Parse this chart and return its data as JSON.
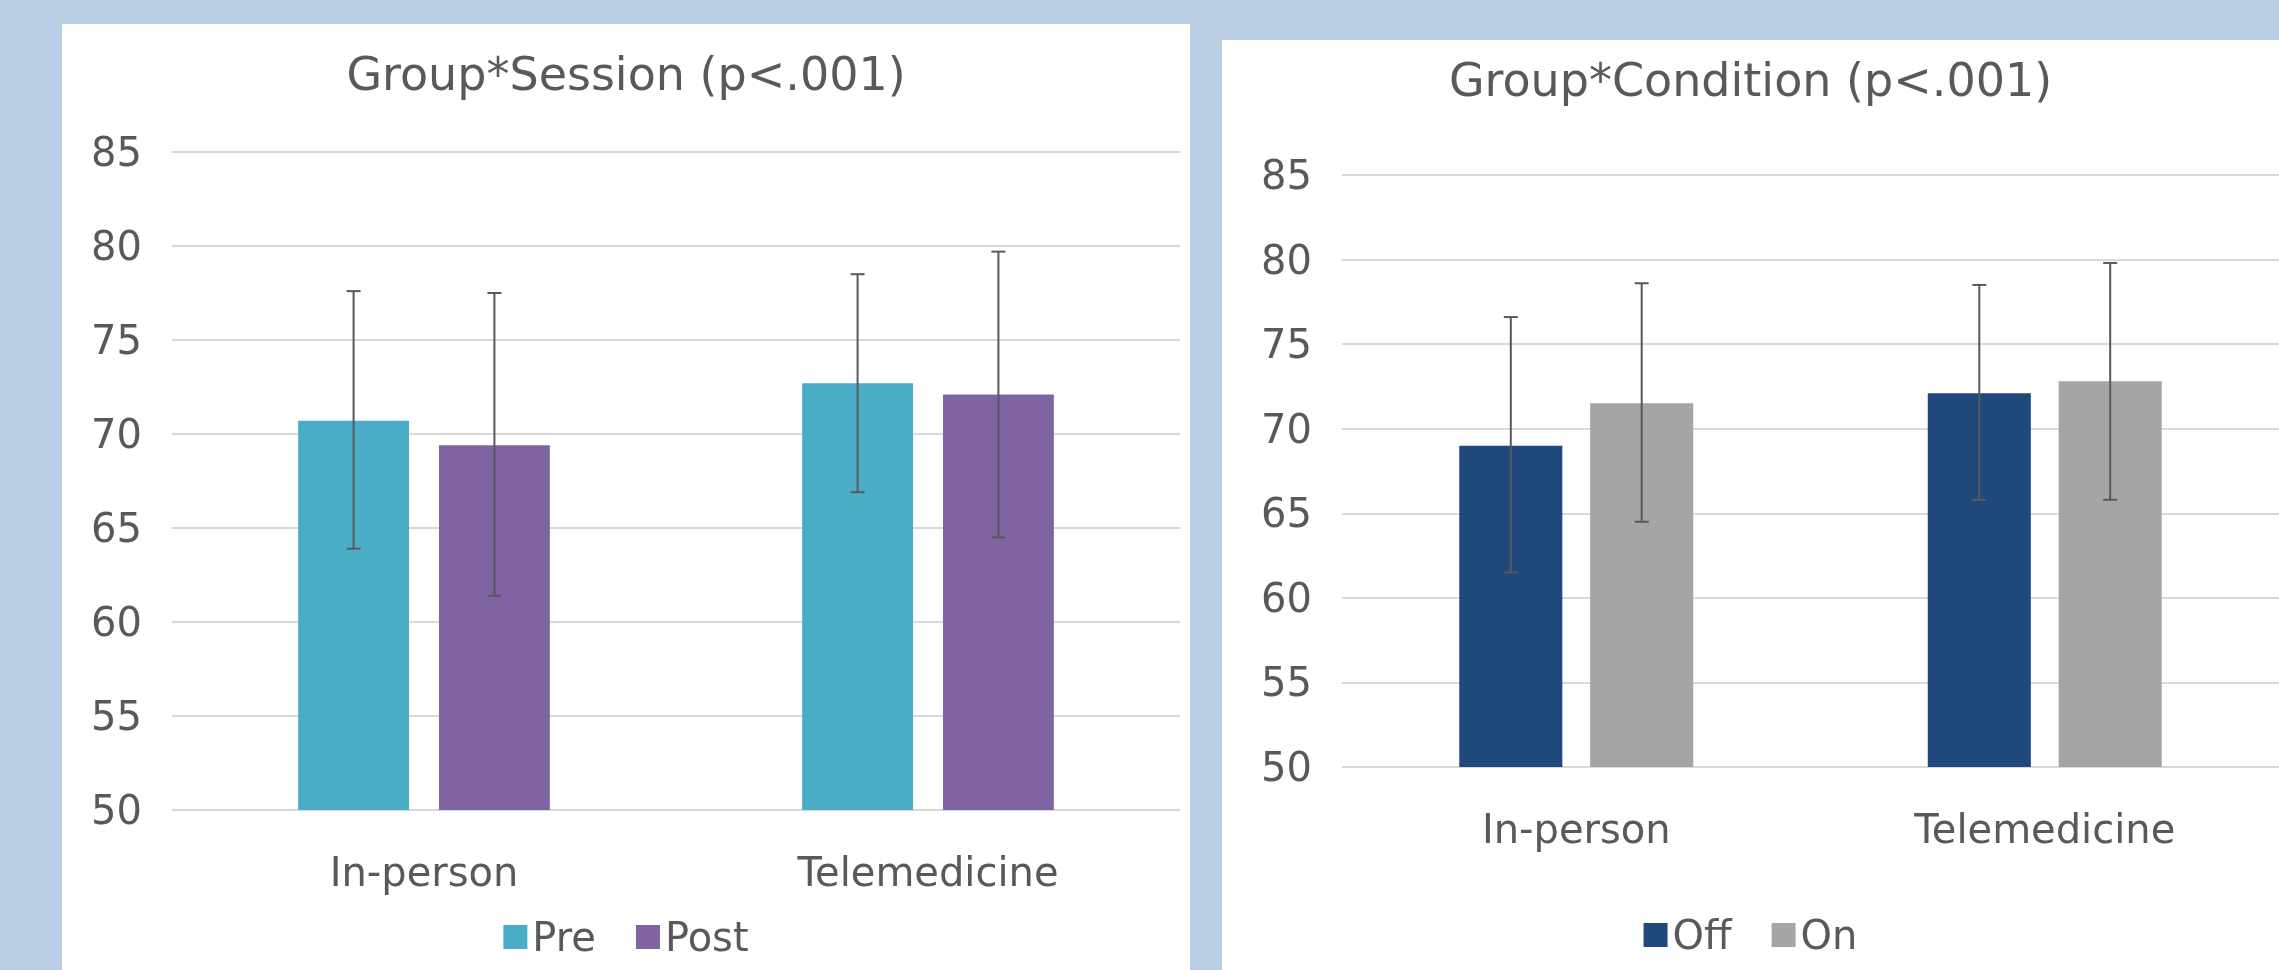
{
  "chart_data": [
    {
      "type": "bar",
      "title": "Group*Session (p<.001)",
      "categories": [
        "In-person",
        "Telemedicine"
      ],
      "series": [
        {
          "name": "Pre",
          "color": "#4bacc6",
          "values": [
            70.7,
            72.7
          ],
          "errors": [
            [
              63.9,
              77.6
            ],
            [
              66.9,
              78.5
            ]
          ]
        },
        {
          "name": "Post",
          "color": "#8064a2",
          "values": [
            69.4,
            72.1
          ],
          "errors": [
            [
              61.4,
              77.5
            ],
            [
              64.5,
              79.7
            ]
          ]
        }
      ],
      "ylim": [
        50,
        85
      ],
      "yticks": [
        50,
        55,
        60,
        65,
        70,
        75,
        80,
        85
      ],
      "grid": "y",
      "legend": "bottom"
    },
    {
      "type": "bar",
      "title": "Group*Condition (p<.001)",
      "categories": [
        "In-person",
        "Telemedicine"
      ],
      "series": [
        {
          "name": "Off",
          "color": "#1f497d",
          "values": [
            69.0,
            72.1
          ],
          "errors": [
            [
              61.5,
              76.6
            ],
            [
              65.8,
              78.5
            ]
          ]
        },
        {
          "name": "On",
          "color": "#a5a5a5",
          "values": [
            71.5,
            72.8
          ],
          "errors": [
            [
              64.5,
              78.6
            ],
            [
              65.8,
              79.8
            ]
          ]
        }
      ],
      "ylim": [
        50,
        85
      ],
      "yticks": [
        50,
        55,
        60,
        65,
        70,
        75,
        80,
        85
      ],
      "grid": "y",
      "legend": "bottom"
    }
  ]
}
